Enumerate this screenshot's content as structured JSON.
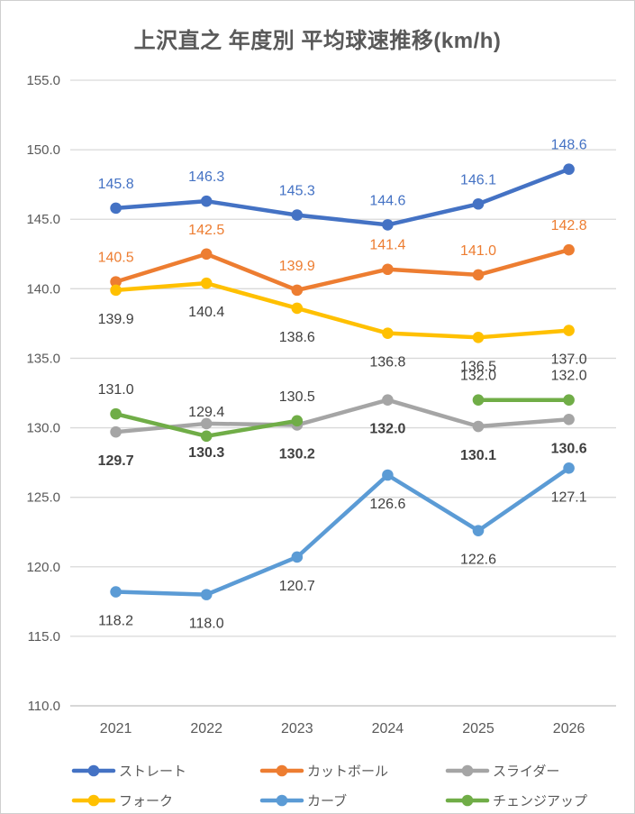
{
  "chart_data": {
    "type": "line",
    "title": "上沢直之 年度別 平均球速推移(km/h)",
    "xlabel": "",
    "ylabel": "",
    "categories": [
      "2021",
      "2022",
      "2023",
      "2024",
      "2025",
      "2026"
    ],
    "ylim": [
      110.0,
      155.0
    ],
    "ytick_step": 5.0,
    "ytick_labels": [
      "155.0",
      "150.0",
      "145.0",
      "140.0",
      "135.0",
      "130.0",
      "125.0",
      "120.0",
      "115.0",
      "110.0"
    ],
    "grid": true,
    "legend_position": "bottom",
    "style": {
      "axis_text_color": "#595959",
      "gridline_color": "#d9d9d9",
      "axis_line_color": "#bfbfbf",
      "dark_label_color": "#404040",
      "legend_text_color": "#595959"
    },
    "series": [
      {
        "id": "straight",
        "name": "ストレート",
        "color": "#4472C4",
        "values": [
          145.8,
          146.3,
          145.3,
          144.6,
          146.1,
          148.6
        ],
        "labels": [
          "145.8",
          "146.3",
          "145.3",
          "144.6",
          "146.1",
          "148.6"
        ],
        "label_position": "above",
        "label_color": "#4472C4",
        "label_bold": false
      },
      {
        "id": "cutball",
        "name": "カットボール",
        "color": "#ED7D31",
        "values": [
          140.5,
          142.5,
          139.9,
          141.4,
          141.0,
          142.8
        ],
        "labels": [
          "140.5",
          "142.5",
          "139.9",
          "141.4",
          "141.0",
          "142.8"
        ],
        "label_position": "above",
        "label_color": "#ED7D31",
        "label_bold": false
      },
      {
        "id": "slider",
        "name": "スライダー",
        "color": "#A5A5A5",
        "values": [
          129.7,
          130.3,
          130.2,
          132.0,
          130.1,
          130.6
        ],
        "labels": [
          "129.7",
          "130.3",
          "130.2",
          "132.0",
          "130.1",
          "130.6"
        ],
        "label_position": "below",
        "label_color": "#404040",
        "label_bold": true
      },
      {
        "id": "fork",
        "name": "フォーク",
        "color": "#FFC000",
        "values": [
          139.9,
          140.4,
          138.6,
          136.8,
          136.5,
          137.0
        ],
        "labels": [
          "139.9",
          "140.4",
          "138.6",
          "136.8",
          "136.5",
          "137.0"
        ],
        "label_position": "below",
        "label_color": "#404040",
        "label_bold": false
      },
      {
        "id": "curve",
        "name": "カーブ",
        "color": "#5B9BD5",
        "values": [
          118.2,
          118.0,
          120.7,
          126.6,
          122.6,
          127.1
        ],
        "labels": [
          "118.2",
          "118.0",
          "120.7",
          "126.6",
          "122.6",
          "127.1"
        ],
        "label_position": "below",
        "label_color": "#404040",
        "label_bold": false
      },
      {
        "id": "changeup",
        "name": "チェンジアップ",
        "color": "#70AD47",
        "values": [
          131.0,
          129.4,
          130.5,
          null,
          132.0,
          132.0
        ],
        "labels": [
          "131.0",
          "129.4",
          "130.5",
          null,
          "132.0",
          "132.0"
        ],
        "label_position": "above",
        "label_color": "#404040",
        "label_bold": false
      }
    ]
  }
}
